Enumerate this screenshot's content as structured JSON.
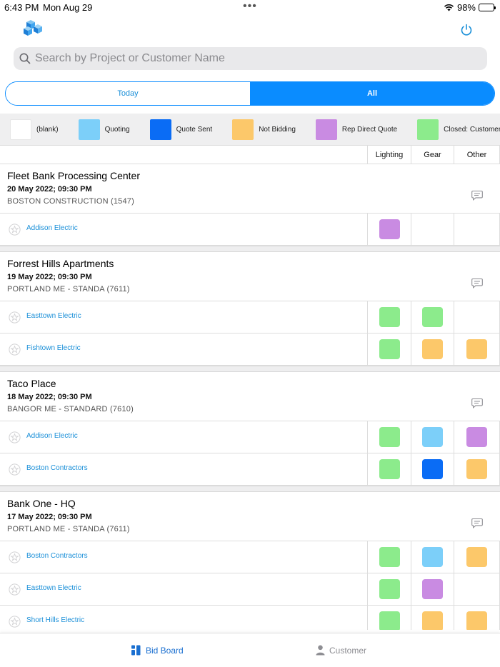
{
  "status_bar": {
    "time": "6:43 PM",
    "date": "Mon Aug 29",
    "battery": "98%"
  },
  "search": {
    "placeholder": "Search by Project or Customer Name"
  },
  "segments": [
    {
      "label": "Today",
      "selected": false
    },
    {
      "label": "All",
      "selected": true
    }
  ],
  "legend": [
    {
      "label": "(blank)",
      "color": "#ffffff"
    },
    {
      "label": "Quoting",
      "color": "#7ccff9"
    },
    {
      "label": "Quote Sent",
      "color": "#0a6cf5"
    },
    {
      "label": "Not Bidding",
      "color": "#fcc86a"
    },
    {
      "label": "Rep Direct Quote",
      "color": "#c98be2"
    },
    {
      "label": "Closed: Customer Won |",
      "color": "#8ceb8c"
    }
  ],
  "columns": {
    "lighting": "Lighting",
    "gear": "Gear",
    "other": "Other"
  },
  "projects": [
    {
      "name": "Fleet Bank Processing Center",
      "date": "20 May 2022; 09:30 PM",
      "customer": "BOSTON CONSTRUCTION (1547)",
      "rows": [
        {
          "company": "Addison Electric",
          "lighting": "#c98be2",
          "gear": "",
          "other": ""
        }
      ]
    },
    {
      "name": "Forrest Hills Apartments",
      "date": "19 May 2022; 09:30 PM",
      "customer": "PORTLAND ME - STANDA (7611)",
      "rows": [
        {
          "company": "Easttown Electric",
          "lighting": "#8ceb8c",
          "gear": "#8ceb8c",
          "other": ""
        },
        {
          "company": "Fishtown Electric",
          "lighting": "#8ceb8c",
          "gear": "#fcc86a",
          "other": "#fcc86a"
        }
      ]
    },
    {
      "name": "Taco Place",
      "date": "18 May 2022; 09:30 PM",
      "customer": "BANGOR ME - STANDARD (7610)",
      "rows": [
        {
          "company": "Addison Electric",
          "lighting": "#8ceb8c",
          "gear": "#7ccff9",
          "other": "#c98be2"
        },
        {
          "company": "Boston Contractors",
          "lighting": "#8ceb8c",
          "gear": "#0a6cf5",
          "other": "#fcc86a"
        }
      ]
    },
    {
      "name": "Bank One - HQ",
      "date": "17 May 2022; 09:30 PM",
      "customer": "PORTLAND ME - STANDA (7611)",
      "rows": [
        {
          "company": "Boston Contractors",
          "lighting": "#8ceb8c",
          "gear": "#7ccff9",
          "other": "#fcc86a"
        },
        {
          "company": "Easttown Electric",
          "lighting": "#8ceb8c",
          "gear": "#c98be2",
          "other": ""
        },
        {
          "company": "Short Hills Electric",
          "lighting": "#8ceb8c",
          "gear": "#fcc86a",
          "other": "#fcc86a"
        }
      ]
    }
  ],
  "tabs": [
    {
      "label": "Bid Board",
      "icon": "bid-board-icon",
      "active": true
    },
    {
      "label": "Customer",
      "icon": "person-icon",
      "active": false
    }
  ]
}
